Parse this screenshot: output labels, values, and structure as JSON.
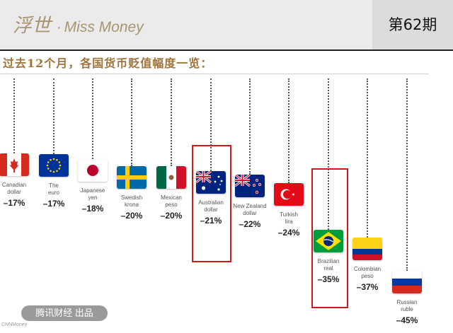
{
  "header": {
    "brand_cn": "浮世",
    "brand_sep": "·",
    "brand_en": "Miss Money",
    "issue": "第62期"
  },
  "subtitle": "过去12个月，各国货币贬值幅度一览：",
  "chart_data": {
    "type": "table",
    "title": "过去12个月，各国货币贬值幅度一览：",
    "categories": [
      "Canadian dollar",
      "The euro",
      "Japanese yen",
      "Swedish krona",
      "Mexican peso",
      "Australian dollar",
      "New Zealand dollar",
      "Turkish lira",
      "Brazilian real",
      "Colombian peso",
      "Russian ruble"
    ],
    "values": [
      -17,
      -17,
      -18,
      -20,
      -20,
      -21,
      -22,
      -24,
      -35,
      -37,
      -45
    ],
    "highlighted": [
      "Australian dollar",
      "Brazilian real"
    ],
    "unit": "%"
  },
  "currencies": [
    {
      "line1": "Canadian",
      "line2": "dollar",
      "pct": "–17%",
      "flag": "canada-flag"
    },
    {
      "line1": "The",
      "line2": "euro",
      "pct": "–17%",
      "flag": "eu-flag"
    },
    {
      "line1": "Japanese",
      "line2": "yen",
      "pct": "–18%",
      "flag": "japan-flag"
    },
    {
      "line1": "Swedish",
      "line2": "krona",
      "pct": "–20%",
      "flag": "sweden-flag"
    },
    {
      "line1": "Mexican",
      "line2": "peso",
      "pct": "–20%",
      "flag": "mexico-flag"
    },
    {
      "line1": "Australian",
      "line2": "dollar",
      "pct": "–21%",
      "flag": "australia-flag"
    },
    {
      "line1": "New Zealand",
      "line2": "dollar",
      "pct": "–22%",
      "flag": "new-zealand-flag"
    },
    {
      "line1": "Turkish",
      "line2": "lira",
      "pct": "–24%",
      "flag": "turkey-flag"
    },
    {
      "line1": "Brazilian",
      "line2": "real",
      "pct": "–35%",
      "flag": "brazil-flag"
    },
    {
      "line1": "Colombian",
      "line2": "peso",
      "pct": "–37%",
      "flag": "colombia-flag"
    },
    {
      "line1": "Russian",
      "line2": "ruble",
      "pct": "–45%",
      "flag": "russia-flag"
    }
  ],
  "highlight_color": "#d0181b",
  "brand_color": "#a89470",
  "footer": {
    "pill": "腾讯财经 出品",
    "source": "CNNMoney"
  }
}
